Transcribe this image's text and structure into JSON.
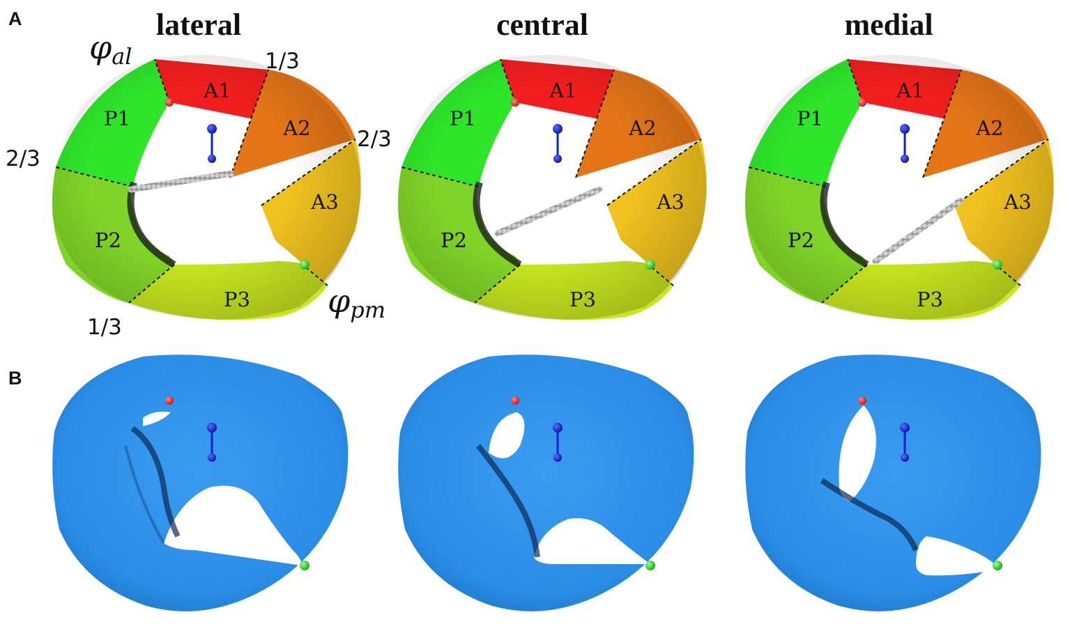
{
  "panel_labels": {
    "a": "A",
    "b": "B"
  },
  "columns": [
    {
      "title": "lateral"
    },
    {
      "title": "central"
    },
    {
      "title": "medial"
    }
  ],
  "segments": [
    "A1",
    "A2",
    "A3",
    "P1",
    "P2",
    "P3"
  ],
  "fractions": {
    "one_third": "1/3",
    "two_thirds": "2/3"
  },
  "angles": {
    "al": {
      "symbol": "φ",
      "sub": "al"
    },
    "pm": {
      "symbol": "φ",
      "sub": "pm"
    }
  },
  "colors": {
    "anterior_red": "#f01e1e",
    "anterior_orange": "#e47518",
    "anterior_yellow": "#f0c21f",
    "posterior_green": "#2ee52a",
    "posterior_lime": "#7fd427",
    "posterior_yellow": "#c8e61f",
    "annulus_blue": "#2a8de6",
    "rod": "#a8a8a8",
    "marker_red": "#e01818",
    "marker_green": "#22c822",
    "marker_blue": "#1020c8"
  }
}
